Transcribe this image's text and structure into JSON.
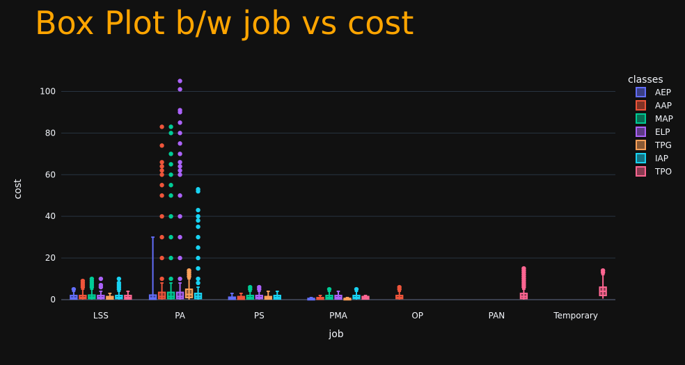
{
  "chart_data": {
    "type": "box",
    "title": "Box Plot b/w job vs cost",
    "xlabel": "job",
    "ylabel": "cost",
    "ylim": [
      -2,
      112
    ],
    "yticks": [
      0,
      20,
      40,
      60,
      80,
      100
    ],
    "grid": true,
    "legend_title": "classes",
    "legend_position": "right",
    "categories": [
      "LSS",
      "PA",
      "PS",
      "PMA",
      "OP",
      "PAN",
      "Temporary"
    ],
    "series": [
      {
        "name": "AEP",
        "color": "#636EFA",
        "boxes": [
          {
            "category": "LSS",
            "q1": 0.3,
            "median": 0.8,
            "q3": 2,
            "whisker_low": 0,
            "whisker_high": 4,
            "outliers": [
              5
            ]
          },
          {
            "category": "PA",
            "q1": 0.2,
            "median": 0.8,
            "q3": 2.2,
            "whisker_low": 0,
            "whisker_high": 30,
            "outliers": []
          },
          {
            "category": "PS",
            "q1": 0.2,
            "median": 0.6,
            "q3": 1.2,
            "whisker_low": 0,
            "whisker_high": 3,
            "outliers": []
          },
          {
            "category": "PMA",
            "q1": 0.1,
            "median": 0.3,
            "q3": 0.6,
            "whisker_low": 0,
            "whisker_high": 1,
            "outliers": []
          }
        ]
      },
      {
        "name": "AAP",
        "color": "#EF553B",
        "boxes": [
          {
            "category": "LSS",
            "q1": 0.5,
            "median": 1,
            "q3": 2,
            "whisker_low": 0,
            "whisker_high": 5,
            "outliers": [
              6,
              7,
              8,
              9
            ]
          },
          {
            "category": "PA",
            "q1": 0.5,
            "median": 1.5,
            "q3": 3.5,
            "whisker_low": 0,
            "whisker_high": 8,
            "outliers": [
              10,
              20,
              30,
              40,
              50,
              55,
              60,
              62,
              64,
              66,
              74,
              83
            ]
          },
          {
            "category": "PS",
            "q1": 0.2,
            "median": 0.8,
            "q3": 1.5,
            "whisker_low": 0,
            "whisker_high": 3,
            "outliers": []
          },
          {
            "category": "PMA",
            "q1": 0.2,
            "median": 0.6,
            "q3": 1,
            "whisker_low": 0,
            "whisker_high": 2,
            "outliers": []
          },
          {
            "category": "OP",
            "q1": 0.5,
            "median": 1,
            "q3": 2,
            "whisker_low": 0,
            "whisker_high": 4,
            "outliers": [
              5,
              6
            ]
          }
        ]
      },
      {
        "name": "MAP",
        "color": "#00CC96",
        "boxes": [
          {
            "category": "LSS",
            "q1": 0.5,
            "median": 1.2,
            "q3": 2.2,
            "whisker_low": 0,
            "whisker_high": 5,
            "outliers": [
              6,
              7,
              8,
              9,
              10
            ]
          },
          {
            "category": "PA",
            "q1": 0.5,
            "median": 1.5,
            "q3": 3.5,
            "whisker_low": 0,
            "whisker_high": 8,
            "outliers": [
              10,
              20,
              30,
              40,
              50,
              55,
              60,
              65,
              70,
              80,
              83
            ]
          },
          {
            "category": "PS",
            "q1": 0.3,
            "median": 1,
            "q3": 2,
            "whisker_low": 0,
            "whisker_high": 4,
            "outliers": [
              5,
              6
            ]
          },
          {
            "category": "PMA",
            "q1": 0.3,
            "median": 1,
            "q3": 2,
            "whisker_low": 0,
            "whisker_high": 4,
            "outliers": [
              5
            ]
          }
        ]
      },
      {
        "name": "ELP",
        "color": "#AB63FA",
        "boxes": [
          {
            "category": "LSS",
            "q1": 0.5,
            "median": 1,
            "q3": 2,
            "whisker_low": 0,
            "whisker_high": 4,
            "outliers": [
              6,
              7,
              10
            ]
          },
          {
            "category": "PA",
            "q1": 0.5,
            "median": 1.5,
            "q3": 3.5,
            "whisker_low": 0,
            "whisker_high": 8,
            "outliers": [
              10,
              20,
              30,
              40,
              50,
              60,
              62,
              64,
              66,
              70,
              75,
              80,
              85,
              90,
              91,
              101,
              105
            ]
          },
          {
            "category": "PS",
            "q1": 0.5,
            "median": 1,
            "q3": 2,
            "whisker_low": 0,
            "whisker_high": 4,
            "outliers": [
              5,
              6
            ]
          },
          {
            "category": "PMA",
            "q1": 0.3,
            "median": 1,
            "q3": 2,
            "whisker_low": 0,
            "whisker_high": 4,
            "outliers": []
          }
        ]
      },
      {
        "name": "TPG",
        "color": "#FFA15A",
        "boxes": [
          {
            "category": "LSS",
            "q1": 0.3,
            "median": 0.8,
            "q3": 1.5,
            "whisker_low": 0,
            "whisker_high": 3,
            "outliers": []
          },
          {
            "category": "PA",
            "q1": 1,
            "median": 2.5,
            "q3": 5,
            "whisker_low": 0,
            "whisker_high": 10,
            "outliers": [
              11,
              12,
              13,
              14
            ]
          },
          {
            "category": "PS",
            "q1": 0.3,
            "median": 0.8,
            "q3": 1.5,
            "whisker_low": 0,
            "whisker_high": 4,
            "outliers": []
          },
          {
            "category": "PMA",
            "q1": 0.1,
            "median": 0.3,
            "q3": 0.6,
            "whisker_low": 0,
            "whisker_high": 1,
            "outliers": []
          }
        ]
      },
      {
        "name": "IAP",
        "color": "#19D3F3",
        "boxes": [
          {
            "category": "LSS",
            "q1": 0.5,
            "median": 1,
            "q3": 2,
            "whisker_low": 0,
            "whisker_high": 4,
            "outliers": [
              5,
              6,
              7,
              8,
              10
            ]
          },
          {
            "category": "PA",
            "q1": 0.5,
            "median": 1.5,
            "q3": 3,
            "whisker_low": 0,
            "whisker_high": 6,
            "outliers": [
              8,
              10,
              15,
              20,
              25,
              30,
              35,
              38,
              40,
              43,
              52,
              53
            ]
          },
          {
            "category": "PS",
            "q1": 0.3,
            "median": 1,
            "q3": 2,
            "whisker_low": 0,
            "whisker_high": 4,
            "outliers": []
          },
          {
            "category": "PMA",
            "q1": 0.5,
            "median": 1,
            "q3": 2,
            "whisker_low": 0,
            "whisker_high": 4,
            "outliers": [
              5
            ]
          }
        ]
      },
      {
        "name": "TPO",
        "color": "#FF6692",
        "boxes": [
          {
            "category": "LSS",
            "q1": 0.3,
            "median": 1,
            "q3": 2,
            "whisker_low": 0,
            "whisker_high": 4,
            "outliers": []
          },
          {
            "category": "PMA",
            "q1": 0.3,
            "median": 0.8,
            "q3": 1.5,
            "whisker_low": 0,
            "whisker_high": 2,
            "outliers": []
          },
          {
            "category": "PAN",
            "q1": 0.5,
            "median": 1.5,
            "q3": 3,
            "whisker_low": 0,
            "whisker_high": 5,
            "outliers": [
              6,
              7,
              8,
              9,
              10,
              11,
              12,
              13,
              14,
              15
            ]
          },
          {
            "category": "Temporary",
            "q1": 2,
            "median": 4,
            "q3": 6,
            "whisker_low": 0.5,
            "whisker_high": 12,
            "outliers": [
              13,
              14
            ]
          }
        ]
      }
    ]
  }
}
